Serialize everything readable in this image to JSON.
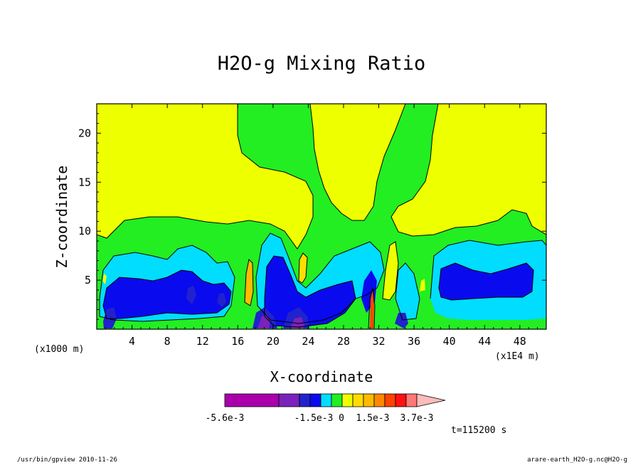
{
  "chart_data": {
    "type": "heatmap",
    "title": "H2O-g Mixing Ratio",
    "xlabel": "X-coordinate",
    "ylabel": "Z-coordinate",
    "x_units_left": "(x1000 m)",
    "x_units_right": "(x1E4 m)",
    "xlim": [
      0,
      51
    ],
    "ylim": [
      0,
      23
    ],
    "x_ticks": [
      4,
      8,
      12,
      16,
      20,
      24,
      28,
      32,
      36,
      40,
      44,
      48
    ],
    "y_ticks": [
      5,
      10,
      15,
      20
    ],
    "colorbar": {
      "colors": [
        "#aa00aa",
        "#7a22bb",
        "#2222cc",
        "#0a0aee",
        "#00ddff",
        "#22ee22",
        "#eeff00",
        "#ffdd00",
        "#ffbb00",
        "#ff8800",
        "#ff4400",
        "#ff1111",
        "#ff7777",
        "#ffbbbb"
      ],
      "labels": [
        "-5.6e-3",
        "-1.5e-3",
        "0",
        "1.5e-3",
        "3.7e-3"
      ]
    },
    "time_label": "t=115200 s"
  },
  "footer": {
    "left": "/usr/bin/gpview  2010-11-26",
    "right": "arare-earth_H2O-g.nc@H2O-g"
  }
}
